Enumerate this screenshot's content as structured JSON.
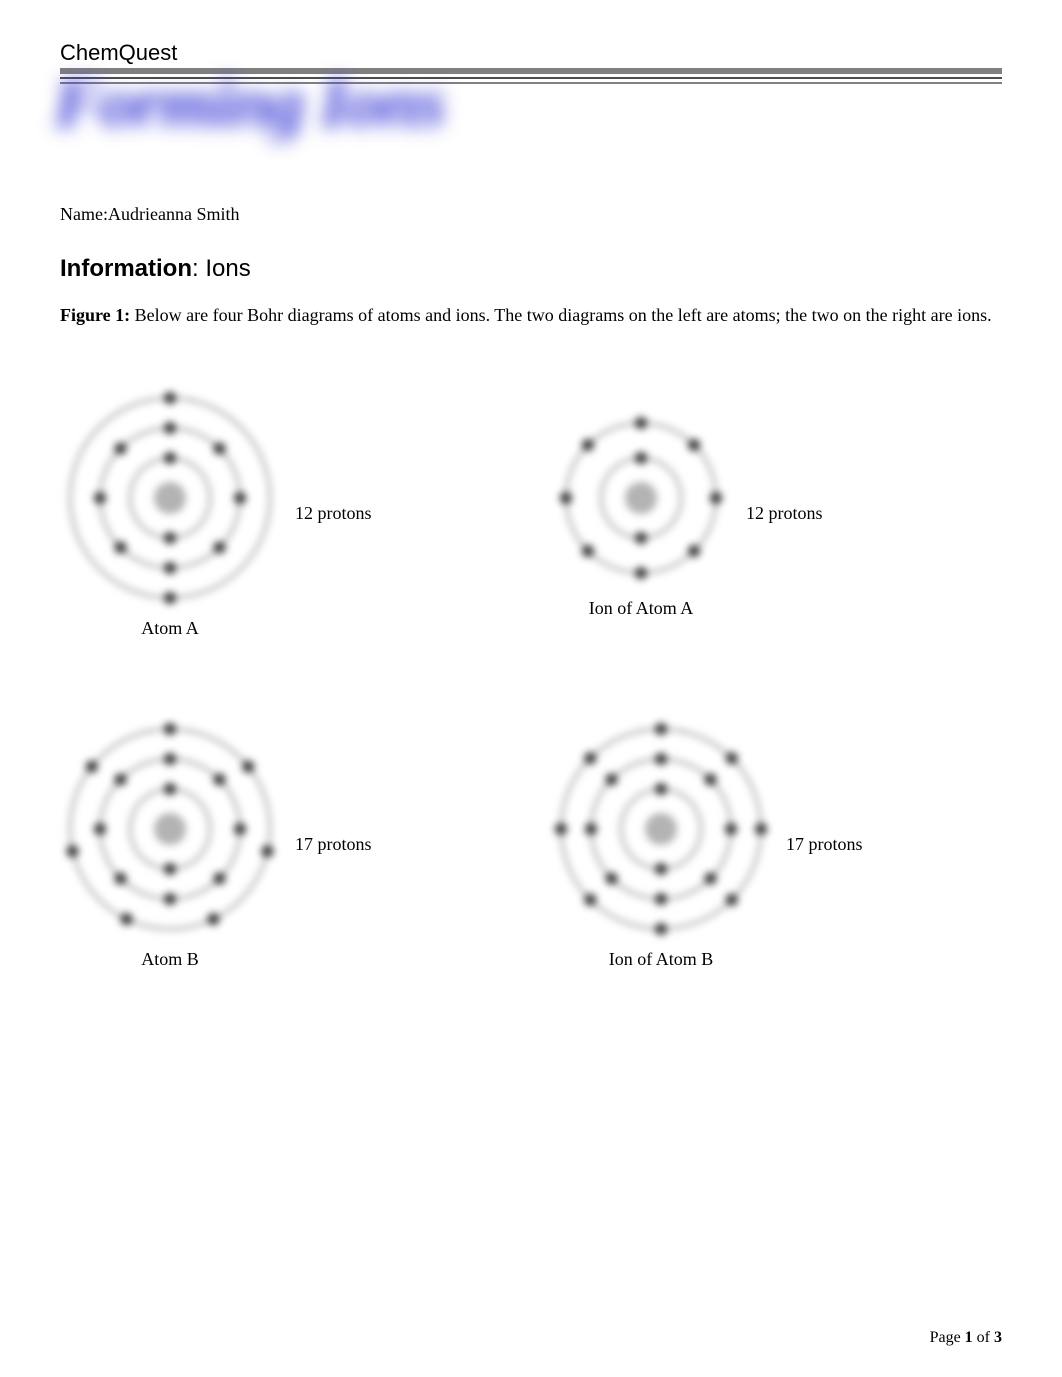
{
  "header": {
    "label": "ChemQuest",
    "blur_title": "Forming Ions",
    "rules": {
      "thick_color": "#808080",
      "thin_dark_color": "#4d4d4d",
      "thin_light_color": "#808080"
    }
  },
  "name_line": "Name:Audrieanna Smith",
  "section": {
    "bold": "Information",
    "rest": ": Ions"
  },
  "figure_caption": {
    "bold": "Figure 1:",
    "text": "  Below are four Bohr diagrams of atoms and ions.  The two diagrams on the left are atoms; the two on the right are ions."
  },
  "diagrams": {
    "style": {
      "shell_stroke": "#808080",
      "shell_stroke_width": 2,
      "electron_fill": "#333333",
      "electron_radius": 6,
      "nucleus_fill": "#b3b3b3",
      "nucleus_radius": 16
    },
    "cells": [
      {
        "id": "atom-a",
        "label": "Atom A",
        "protons_label": "12 protons",
        "size": 220,
        "shells": [
          {
            "r": 40,
            "electrons": 2
          },
          {
            "r": 70,
            "electrons": 8
          },
          {
            "r": 100,
            "electrons": 2
          }
        ]
      },
      {
        "id": "ion-a",
        "label": "Ion of Atom A",
        "protons_label": "12 protons",
        "size": 180,
        "shells": [
          {
            "r": 40,
            "electrons": 2
          },
          {
            "r": 75,
            "electrons": 8
          }
        ]
      },
      {
        "id": "atom-b",
        "label": "Atom B",
        "protons_label": "17 protons",
        "size": 220,
        "shells": [
          {
            "r": 40,
            "electrons": 2
          },
          {
            "r": 70,
            "electrons": 8
          },
          {
            "r": 100,
            "electrons": 7
          }
        ]
      },
      {
        "id": "ion-b",
        "label": "Ion of Atom B",
        "protons_label": "17 protons",
        "size": 220,
        "shells": [
          {
            "r": 40,
            "electrons": 2
          },
          {
            "r": 70,
            "electrons": 8
          },
          {
            "r": 100,
            "electrons": 8
          }
        ]
      }
    ]
  },
  "footer": {
    "prefix": "Page ",
    "page": "1",
    "of": " of ",
    "total": "3"
  }
}
